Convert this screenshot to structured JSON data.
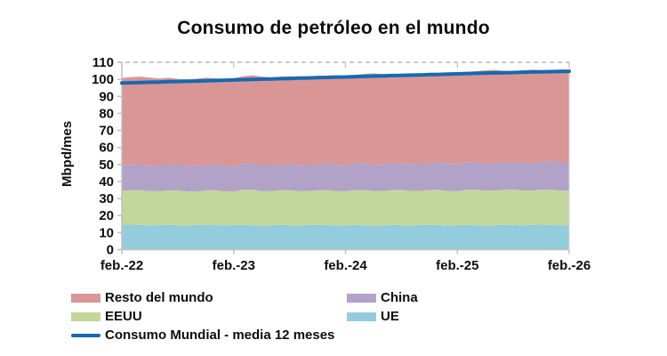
{
  "chart_data": {
    "type": "area",
    "subtype": "stacked-area-with-line",
    "title": "Consumo de petróleo en el mundo",
    "xlabel": "",
    "ylabel": "Mbpd/mes",
    "ylim": [
      0,
      110
    ],
    "yticks": [
      0,
      10,
      20,
      30,
      40,
      50,
      60,
      70,
      80,
      90,
      100,
      110
    ],
    "x_tick_labels": [
      "feb.-22",
      "feb.-23",
      "feb.-24",
      "feb.-25",
      "feb.-26"
    ],
    "x_tick_indices": [
      0,
      12,
      24,
      36,
      48
    ],
    "grid": "dashed top gridline at 110 only",
    "legend_position": "bottom-left, two columns",
    "colors": {
      "resto_del_mundo": "#D99694",
      "china": "#B2A2C7",
      "eeuu": "#C3D69B",
      "ue": "#93CDDD",
      "line": "#1569B4",
      "axis": "#BFBFBF",
      "gridline": "#C9C9C9",
      "text": "#0d0d0d"
    },
    "series": [
      {
        "name": "UE",
        "color": "#93CDDD",
        "values": [
          14.5,
          14.7,
          14.4,
          14.2,
          14.4,
          14.6,
          14.3,
          14.1,
          14.4,
          14.7,
          14.5,
          14.2,
          14.4,
          14.6,
          14.3,
          14.0,
          14.2,
          14.5,
          14.3,
          14.1,
          14.4,
          14.6,
          14.4,
          14.1,
          14.3,
          14.6,
          14.2,
          14.0,
          14.2,
          14.5,
          14.3,
          14.1,
          14.4,
          14.6,
          14.4,
          14.1,
          14.3,
          14.6,
          14.3,
          14.1,
          14.3,
          14.6,
          14.4,
          14.2,
          14.5,
          14.7,
          14.5,
          14.2,
          14.4
        ]
      },
      {
        "name": "EEUU",
        "color": "#C3D69B",
        "values": [
          20.0,
          20.3,
          20.5,
          20.2,
          19.9,
          20.2,
          20.5,
          20.1,
          19.8,
          20.1,
          20.4,
          20.0,
          19.8,
          20.6,
          20.9,
          20.4,
          20.1,
          20.4,
          20.7,
          20.3,
          20.0,
          20.3,
          20.6,
          20.2,
          20.0,
          20.4,
          20.8,
          20.5,
          20.2,
          20.5,
          20.8,
          20.4,
          20.1,
          20.4,
          20.7,
          20.3,
          20.1,
          20.5,
          20.9,
          20.6,
          20.3,
          20.6,
          20.9,
          20.5,
          20.2,
          20.5,
          20.8,
          20.4,
          20.3
        ]
      },
      {
        "name": "China",
        "color": "#B2A2C7",
        "values": [
          15.2,
          15.0,
          15.3,
          15.1,
          14.9,
          15.2,
          15.4,
          15.1,
          14.9,
          15.2,
          15.5,
          15.2,
          15.0,
          15.3,
          15.6,
          15.3,
          15.1,
          15.4,
          15.7,
          15.4,
          15.2,
          15.5,
          15.8,
          15.5,
          15.4,
          15.7,
          16.0,
          15.7,
          15.5,
          15.8,
          16.1,
          15.8,
          15.6,
          15.9,
          16.2,
          15.9,
          15.8,
          16.1,
          16.4,
          16.1,
          15.9,
          16.2,
          16.5,
          16.2,
          16.2,
          16.6,
          16.9,
          16.6,
          16.5
        ]
      },
      {
        "name": "Resto del mundo",
        "color": "#D99694",
        "values": [
          51.1,
          51.3,
          51.4,
          51.5,
          51.4,
          50.9,
          50.1,
          50.6,
          51.3,
          50.9,
          50.2,
          50.8,
          51.5,
          51.3,
          51.6,
          51.9,
          51.7,
          51.2,
          51.1,
          51.6,
          52.1,
          51.6,
          51.0,
          51.7,
          52.3,
          51.9,
          52.2,
          53.3,
          53.2,
          52.0,
          52.0,
          52.7,
          53.3,
          52.2,
          52.0,
          52.7,
          53.4,
          53.0,
          53.2,
          54.5,
          55.1,
          53.6,
          52.8,
          54.3,
          54.8,
          53.6,
          53.2,
          53.8,
          54.0
        ]
      }
    ],
    "line_series": {
      "name": "Consumo Mundial - media 12 meses",
      "color": "#1569B4",
      "values": [
        97.8,
        98.0,
        98.1,
        98.3,
        98.4,
        98.6,
        98.7,
        98.9,
        99.0,
        99.2,
        99.3,
        99.5,
        99.6,
        99.8,
        99.9,
        100.1,
        100.2,
        100.4,
        100.5,
        100.7,
        100.8,
        101.0,
        101.1,
        101.3,
        101.4,
        101.6,
        101.7,
        101.9,
        102.0,
        102.2,
        102.3,
        102.5,
        102.6,
        102.8,
        102.9,
        103.1,
        103.2,
        103.4,
        103.5,
        103.7,
        103.8,
        103.9,
        104.0,
        104.2,
        104.3,
        104.4,
        104.5,
        104.6,
        104.7
      ]
    },
    "legend": {
      "rows": [
        [
          {
            "label": "Resto del mundo",
            "color": "#D99694",
            "kind": "area"
          },
          {
            "label": "China",
            "color": "#B2A2C7",
            "kind": "area"
          }
        ],
        [
          {
            "label": "EEUU",
            "color": "#C3D69B",
            "kind": "area"
          },
          {
            "label": "UE",
            "color": "#93CDDD",
            "kind": "area"
          }
        ],
        [
          {
            "label": "Consumo Mundial - media 12 meses",
            "color": "#1569B4",
            "kind": "line"
          }
        ]
      ]
    }
  }
}
